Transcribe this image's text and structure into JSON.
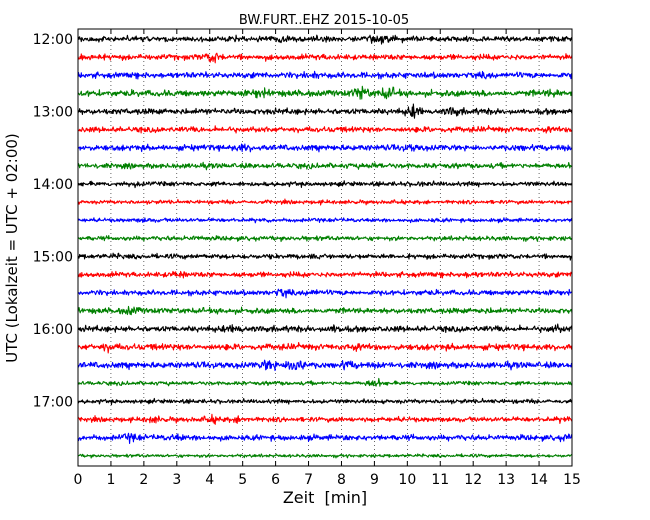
{
  "chart_data": {
    "type": "line",
    "title": "BW.FURT..EHZ 2015-10-05",
    "xlabel": "Zeit  [min]",
    "ylabel": "UTC (Lokalzeit = UTC + 02:00)",
    "xlim": [
      0,
      15
    ],
    "x_ticks": [
      "0",
      "1",
      "2",
      "3",
      "4",
      "5",
      "6",
      "7",
      "8",
      "9",
      "10",
      "11",
      "12",
      "13",
      "14",
      "15"
    ],
    "y_ticks": [
      "12:00",
      "13:00",
      "14:00",
      "15:00",
      "16:00",
      "17:00"
    ],
    "y_tick_rows": [
      0,
      4,
      8,
      12,
      16,
      20
    ],
    "grid": "vertical-dotted",
    "colors": [
      "#000000",
      "#ff0000",
      "#0000ff",
      "#008000"
    ],
    "traces": [
      {
        "start": "12:00",
        "amplitude": 0.8,
        "bursts": [
          [
            6.1,
            1.6
          ],
          [
            9.2,
            1.4
          ],
          [
            3.3,
            1.1
          ]
        ]
      },
      {
        "start": "12:15",
        "amplitude": 0.8,
        "bursts": [
          [
            4.1,
            1.9
          ],
          [
            7.5,
            1.1
          ],
          [
            12.0,
            1.0
          ]
        ]
      },
      {
        "start": "12:30",
        "amplitude": 0.85,
        "bursts": [
          [
            7.1,
            1.3
          ],
          [
            12.4,
            1.2
          ],
          [
            0.7,
            1.0
          ]
        ]
      },
      {
        "start": "12:45",
        "amplitude": 0.9,
        "bursts": [
          [
            5.5,
            1.5
          ],
          [
            8.6,
            2.0
          ],
          [
            9.4,
            1.8
          ],
          [
            14.4,
            1.3
          ]
        ]
      },
      {
        "start": "13:00",
        "amplitude": 0.85,
        "bursts": [
          [
            10.2,
            1.8
          ],
          [
            11.4,
            1.5
          ],
          [
            1.0,
            1.0
          ]
        ]
      },
      {
        "start": "13:15",
        "amplitude": 0.8,
        "bursts": [
          [
            4.4,
            1.1
          ],
          [
            10.8,
            1.1
          ],
          [
            14.2,
            1.1
          ]
        ]
      },
      {
        "start": "13:30",
        "amplitude": 0.85,
        "bursts": [
          [
            5.0,
            1.4
          ],
          [
            10.1,
            1.3
          ],
          [
            13.4,
            1.2
          ]
        ]
      },
      {
        "start": "13:45",
        "amplitude": 0.75,
        "bursts": [
          [
            8.9,
            1.2
          ],
          [
            2.5,
            1.0
          ]
        ]
      },
      {
        "start": "14:00",
        "amplitude": 0.65,
        "bursts": [
          [
            1.7,
            1.3
          ],
          [
            10.4,
            1.2
          ]
        ]
      },
      {
        "start": "14:15",
        "amplitude": 0.55,
        "bursts": [
          [
            7.4,
            1.1
          ]
        ]
      },
      {
        "start": "14:30",
        "amplitude": 0.55,
        "bursts": [
          [
            2.0,
            1.3
          ],
          [
            10.8,
            1.1
          ]
        ]
      },
      {
        "start": "14:45",
        "amplitude": 0.65,
        "bursts": [
          [
            3.6,
            1.2
          ],
          [
            7.0,
            1.1
          ]
        ]
      },
      {
        "start": "15:00",
        "amplitude": 0.7,
        "bursts": [
          [
            1.2,
            1.1
          ],
          [
            12.3,
            1.0
          ]
        ]
      },
      {
        "start": "15:15",
        "amplitude": 0.75,
        "bursts": [
          [
            3.0,
            1.4
          ],
          [
            11.9,
            1.3
          ],
          [
            14.0,
            1.1
          ]
        ]
      },
      {
        "start": "15:30",
        "amplitude": 0.75,
        "bursts": [
          [
            6.2,
            1.6
          ],
          [
            7.1,
            1.4
          ],
          [
            10.5,
            1.1
          ]
        ]
      },
      {
        "start": "15:45",
        "amplitude": 0.8,
        "bursts": [
          [
            1.6,
            1.6
          ],
          [
            4.5,
            1.1
          ],
          [
            12.4,
            1.1
          ]
        ]
      },
      {
        "start": "16:00",
        "amplitude": 0.85,
        "bursts": [
          [
            4.8,
            1.6
          ],
          [
            7.8,
            1.5
          ],
          [
            14.5,
            1.4
          ]
        ]
      },
      {
        "start": "16:15",
        "amplitude": 0.9,
        "bursts": [
          [
            0.9,
            1.4
          ],
          [
            8.3,
            1.3
          ],
          [
            12.0,
            1.0
          ]
        ]
      },
      {
        "start": "16:30",
        "amplitude": 0.9,
        "bursts": [
          [
            6.6,
            2.6
          ],
          [
            5.8,
            1.7
          ],
          [
            8.2,
            1.4
          ],
          [
            11.0,
            1.0
          ]
        ]
      },
      {
        "start": "16:45",
        "amplitude": 0.55,
        "bursts": [
          [
            9.0,
            1.9
          ],
          [
            6.0,
            1.1
          ]
        ]
      },
      {
        "start": "17:00",
        "amplitude": 0.6,
        "bursts": [
          [
            7.5,
            1.1
          ],
          [
            12.5,
            1.1
          ]
        ]
      },
      {
        "start": "17:15",
        "amplitude": 0.7,
        "bursts": [
          [
            2.3,
            1.4
          ],
          [
            4.1,
            1.5
          ],
          [
            4.9,
            1.4
          ],
          [
            14.8,
            1.2
          ]
        ]
      },
      {
        "start": "17:30",
        "amplitude": 0.8,
        "bursts": [
          [
            1.6,
            1.5
          ],
          [
            3.0,
            1.3
          ],
          [
            14.9,
            1.4
          ],
          [
            7.3,
            1.0
          ]
        ]
      },
      {
        "start": "17:45",
        "amplitude": 0.45,
        "bursts": [
          [
            4.8,
            1.1
          ]
        ]
      }
    ]
  }
}
